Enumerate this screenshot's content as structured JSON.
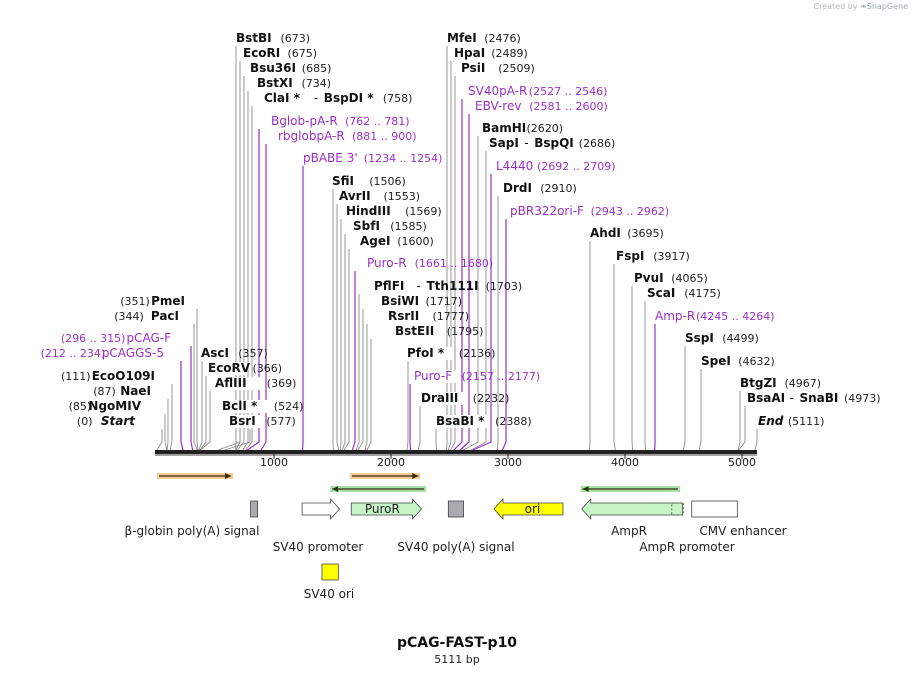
{
  "header": {
    "credit_prefix": "Created by",
    "credit_brand": "SnapGene"
  },
  "plasmid": {
    "name": "pCAG-FAST-p10",
    "length_label": "5111 bp",
    "length": 5111
  },
  "colors": {
    "enzyme": "#111111",
    "primer": "#9b30c8",
    "count": "#222222",
    "feature_green": "#c8f5c8",
    "feature_yellow": "#ffff00",
    "feature_gray": "#a9abb0",
    "arrow_orange": "#e8a33c",
    "arrow_green": "#5cc85c"
  },
  "ruler": {
    "ticks": [
      {
        "value": 1000,
        "label": "1000"
      },
      {
        "value": 2000,
        "label": "2000"
      },
      {
        "value": 3000,
        "label": "3000"
      },
      {
        "value": 4000,
        "label": "4000"
      },
      {
        "value": 5000,
        "label": "5000"
      }
    ]
  },
  "sites": [
    {
      "id": "bstbi",
      "kind": "enzyme",
      "name": "BstBI",
      "pos_text": "(673)",
      "pos": 673
    },
    {
      "id": "ecori",
      "kind": "enzyme",
      "name": "EcoRI",
      "pos_text": "(675)",
      "pos": 675
    },
    {
      "id": "bsu36i",
      "kind": "enzyme",
      "name": "Bsu36I",
      "pos_text": "(685)",
      "pos": 685
    },
    {
      "id": "bstxi",
      "kind": "enzyme",
      "name": "BstXI",
      "pos_text": "(734)",
      "pos": 734
    },
    {
      "id": "clai",
      "kind": "enzyme",
      "name": "ClaI *",
      "name2": "BspDI *",
      "pos_text": "(758)",
      "pos": 758
    },
    {
      "id": "bglob",
      "kind": "primer",
      "name": "Bglob-pA-R",
      "pos_text": "(762 .. 781)",
      "pos": 771
    },
    {
      "id": "rbglob",
      "kind": "primer",
      "name": "rbglobpA-R",
      "pos_text": "(881 .. 900)",
      "pos": 890
    },
    {
      "id": "pbabe",
      "kind": "primer",
      "name": "pBABE 3'",
      "pos_text": "(1234 .. 1254)",
      "pos": 1244
    },
    {
      "id": "sfii",
      "kind": "enzyme",
      "name": "SfiI",
      "pos_text": "(1506)",
      "pos": 1506
    },
    {
      "id": "avrii",
      "kind": "enzyme",
      "name": "AvrII",
      "pos_text": "(1553)",
      "pos": 1553
    },
    {
      "id": "hindiii",
      "kind": "enzyme",
      "name": "HindIII",
      "pos_text": "(1569)",
      "pos": 1569
    },
    {
      "id": "sbfi",
      "kind": "enzyme",
      "name": "SbfI",
      "pos_text": "(1585)",
      "pos": 1585
    },
    {
      "id": "agei",
      "kind": "enzyme",
      "name": "AgeI",
      "pos_text": "(1600)",
      "pos": 1600
    },
    {
      "id": "puror",
      "kind": "primer",
      "name": "Puro-R",
      "pos_text": "(1661 .. 1680)",
      "pos": 1670
    },
    {
      "id": "pflfi",
      "kind": "enzyme",
      "name": "PflFI",
      "name2": "Tth111I",
      "pos_text": "(1703)",
      "pos": 1703
    },
    {
      "id": "bsiwi",
      "kind": "enzyme",
      "name": "BsiWI",
      "pos_text": "(1717)",
      "pos": 1717
    },
    {
      "id": "rsrii",
      "kind": "enzyme",
      "name": "RsrII",
      "pos_text": "(1777)",
      "pos": 1777
    },
    {
      "id": "bsteii",
      "kind": "enzyme",
      "name": "BstEII",
      "pos_text": "(1795)",
      "pos": 1795
    },
    {
      "id": "pfoi",
      "kind": "enzyme",
      "name": "PfoI *",
      "pos_text": "(2136)",
      "pos": 2136
    },
    {
      "id": "purof",
      "kind": "primer",
      "name": "Puro-F",
      "pos_text": "(2157 .. 2177)",
      "pos": 2167
    },
    {
      "id": "draiii",
      "kind": "enzyme",
      "name": "DraIII",
      "pos_text": "(2232)",
      "pos": 2232
    },
    {
      "id": "bsabi",
      "kind": "enzyme",
      "name": "BsaBI *",
      "pos_text": "(2388)",
      "pos": 2388
    },
    {
      "id": "mfei",
      "kind": "enzyme",
      "name": "MfeI",
      "pos_text": "(2476)",
      "pos": 2476
    },
    {
      "id": "hpai",
      "kind": "enzyme",
      "name": "HpaI",
      "pos_text": "(2489)",
      "pos": 2489
    },
    {
      "id": "psii",
      "kind": "enzyme",
      "name": "PsiI",
      "pos_text": "(2509)",
      "pos": 2509
    },
    {
      "id": "sv40pa",
      "kind": "primer",
      "name": "SV40pA-R",
      "pos_text": "(2527 .. 2546)",
      "pos": 2536
    },
    {
      "id": "ebvrev",
      "kind": "primer",
      "name": "EBV-rev",
      "pos_text": "(2581 .. 2600)",
      "pos": 2590
    },
    {
      "id": "bamhi",
      "kind": "enzyme",
      "name": "BamHI",
      "pos_text": "(2620)",
      "pos": 2620
    },
    {
      "id": "sapi",
      "kind": "enzyme",
      "name": "SapI",
      "name2": "BspQI",
      "pos_text": "(2686)",
      "pos": 2686
    },
    {
      "id": "l4440",
      "kind": "primer",
      "name": "L4440",
      "pos_text": "(2692 .. 2709)",
      "pos": 2700
    },
    {
      "id": "drdi",
      "kind": "enzyme",
      "name": "DrdI",
      "pos_text": "(2910)",
      "pos": 2910
    },
    {
      "id": "pbr322",
      "kind": "primer",
      "name": "pBR322ori-F",
      "pos_text": "(2943 .. 2962)",
      "pos": 2952
    },
    {
      "id": "ahdi",
      "kind": "enzyme",
      "name": "AhdI",
      "pos_text": "(3695)",
      "pos": 3695
    },
    {
      "id": "fspi",
      "kind": "enzyme",
      "name": "FspI",
      "pos_text": "(3917)",
      "pos": 3917
    },
    {
      "id": "pvui",
      "kind": "enzyme",
      "name": "PvuI",
      "pos_text": "(4065)",
      "pos": 4065
    },
    {
      "id": "scai",
      "kind": "enzyme",
      "name": "ScaI",
      "pos_text": "(4175)",
      "pos": 4175
    },
    {
      "id": "ampr_p",
      "kind": "primer",
      "name": "Amp-R",
      "pos_text": "(4245 .. 4264)",
      "pos": 4254
    },
    {
      "id": "sspi",
      "kind": "enzyme",
      "name": "SspI",
      "pos_text": "(4499)",
      "pos": 4499
    },
    {
      "id": "spei",
      "kind": "enzyme",
      "name": "SpeI",
      "pos_text": "(4632)",
      "pos": 4632
    },
    {
      "id": "btgzi",
      "kind": "enzyme",
      "name": "BtgZI",
      "pos_text": "(4967)",
      "pos": 4967
    },
    {
      "id": "bsaai",
      "kind": "enzyme",
      "name": "BsaAI",
      "name2": "SnaBI",
      "pos_text": "(4973)",
      "pos": 4973
    },
    {
      "id": "end",
      "kind": "end",
      "name": "End",
      "pos_text": "(5111)",
      "pos": 5111
    },
    {
      "id": "start",
      "kind": "end",
      "name": "Start",
      "pos_text": "(0)",
      "pos": 0
    },
    {
      "id": "ngomiv",
      "kind": "enzyme",
      "name": "NgoMIV",
      "pos_text": "(85)",
      "pos": 85
    },
    {
      "id": "naei",
      "kind": "enzyme",
      "name": "NaeI",
      "pos_text": "(87)",
      "pos": 87
    },
    {
      "id": "ecoo109i",
      "kind": "enzyme",
      "name": "EcoO109I",
      "pos_text": "(111)",
      "pos": 111
    },
    {
      "id": "pcaggs5",
      "kind": "primer",
      "name": "pCAGGS-5",
      "pos_text": "(212 .. 234)",
      "pos": 223
    },
    {
      "id": "pcagf",
      "kind": "primer",
      "name": "pCAG-F",
      "pos_text": "(296 .. 315)",
      "pos": 305
    },
    {
      "id": "paci",
      "kind": "enzyme",
      "name": "PacI",
      "pos_text": "(344)",
      "pos": 344
    },
    {
      "id": "pmei",
      "kind": "enzyme",
      "name": "PmeI",
      "pos_text": "(351)",
      "pos": 351
    },
    {
      "id": "asci",
      "kind": "enzyme",
      "name": "AscI",
      "pos_text": "(357)",
      "pos": 357
    },
    {
      "id": "ecorv",
      "kind": "enzyme",
      "name": "EcoRV",
      "pos_text": "(366)",
      "pos": 366
    },
    {
      "id": "afliii",
      "kind": "enzyme",
      "name": "AflIII",
      "pos_text": "(369)",
      "pos": 369
    },
    {
      "id": "bcli",
      "kind": "enzyme",
      "name": "BclI *",
      "pos_text": "(524)",
      "pos": 524
    },
    {
      "id": "bsri",
      "kind": "enzyme",
      "name": "BsrI",
      "pos_text": "(577)",
      "pos": 577
    }
  ],
  "features": [
    {
      "id": "bglobin",
      "label": "β-globin poly(A) signal",
      "shape": "box",
      "color": "gray",
      "start": 800,
      "end": 860
    },
    {
      "id": "sv40prom",
      "label": "SV40 promoter",
      "shape": "arrow-right",
      "color": "white",
      "start": 1240,
      "end": 1560
    },
    {
      "id": "puror_feat",
      "label": "PuroR",
      "shape": "arrow-right",
      "color": "green",
      "start": 1660,
      "end": 2260
    },
    {
      "id": "sv40pa_feat",
      "label": "SV40 poly(A) signal",
      "shape": "box",
      "color": "gray",
      "start": 2490,
      "end": 2620
    },
    {
      "id": "ori",
      "label": "ori",
      "shape": "arrow-left",
      "color": "yellow",
      "start": 2880,
      "end": 3470
    },
    {
      "id": "ampr",
      "label": "AmpR",
      "shape": "arrow-left",
      "color": "green",
      "start": 3630,
      "end": 4490
    },
    {
      "id": "ampr_prom",
      "label": "AmpR promoter",
      "shape": "arrow-left-dashed",
      "color": "green",
      "start": 4400,
      "end": 4500
    },
    {
      "id": "cmv",
      "label": "CMV enhancer",
      "shape": "box",
      "color": "white",
      "start": 4570,
      "end": 4960
    },
    {
      "id": "sv40ori",
      "label": "SV40 ori",
      "shape": "box",
      "color": "yellow",
      "start": 1410,
      "end": 1550
    }
  ],
  "strand_arrows": [
    {
      "id": "orf1",
      "direction": "right",
      "color": "orange",
      "start": 0,
      "end": 650
    },
    {
      "id": "orf2",
      "direction": "right",
      "color": "orange",
      "start": 1650,
      "end": 2250
    },
    {
      "id": "orf3",
      "direction": "left",
      "color": "green",
      "start": 1480,
      "end": 2300
    },
    {
      "id": "orf4",
      "direction": "left",
      "color": "green",
      "start": 3620,
      "end": 4470
    }
  ]
}
